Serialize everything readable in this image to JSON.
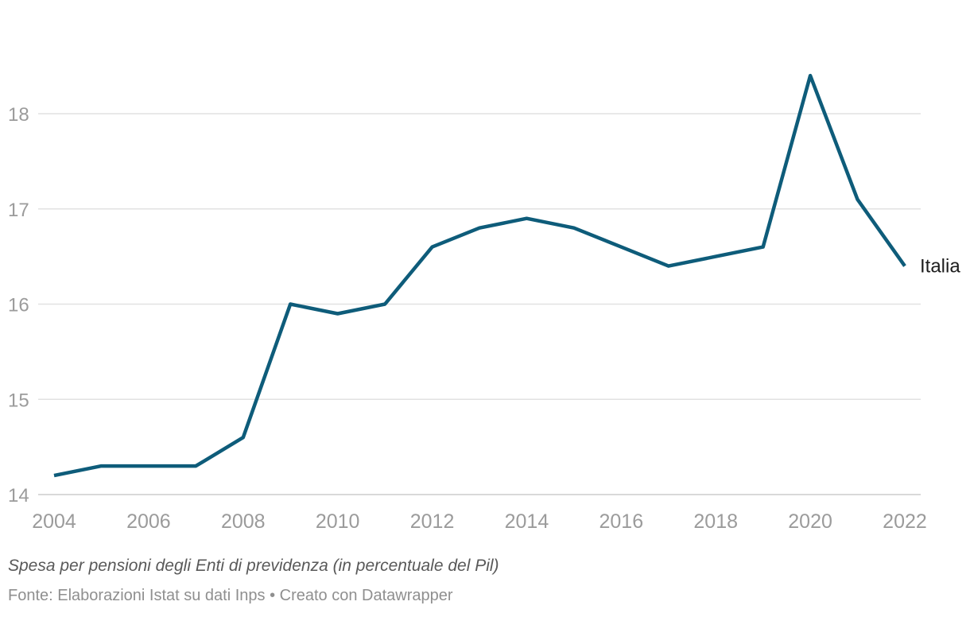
{
  "footer": {
    "title": "Spesa per pensioni degli Enti di previdenza (in percentuale del Pil)",
    "source": "Fonte: Elaborazioni Istat su dati Inps • Creato con Datawrapper"
  },
  "chart_data": {
    "type": "line",
    "title": "Spesa per pensioni degli Enti di previdenza (in percentuale del Pil)",
    "source": "Fonte: Elaborazioni Istat su dati Inps • Creato con Datawrapper",
    "x": [
      2004,
      2005,
      2006,
      2007,
      2008,
      2009,
      2010,
      2011,
      2012,
      2013,
      2014,
      2015,
      2016,
      2017,
      2018,
      2019,
      2020,
      2021,
      2022
    ],
    "series": [
      {
        "name": "Italia",
        "values": [
          14.2,
          14.3,
          14.3,
          14.3,
          14.6,
          16.0,
          15.9,
          16.0,
          16.6,
          16.8,
          16.9,
          16.8,
          16.6,
          16.4,
          16.5,
          16.6,
          18.4,
          17.1,
          16.4
        ]
      }
    ],
    "line_color": "#0e5c7a",
    "direct_label": "Italia",
    "xlabel": "",
    "ylabel": "",
    "xlim": [
      2004,
      2022
    ],
    "ylim": [
      14,
      18.6
    ],
    "yticks": [
      14,
      15,
      16,
      17,
      18
    ],
    "xticks": [
      2004,
      2006,
      2008,
      2010,
      2012,
      2014,
      2016,
      2018,
      2020,
      2022
    ],
    "grid": "horizontal-only",
    "legend_position": "direct-label-right"
  }
}
